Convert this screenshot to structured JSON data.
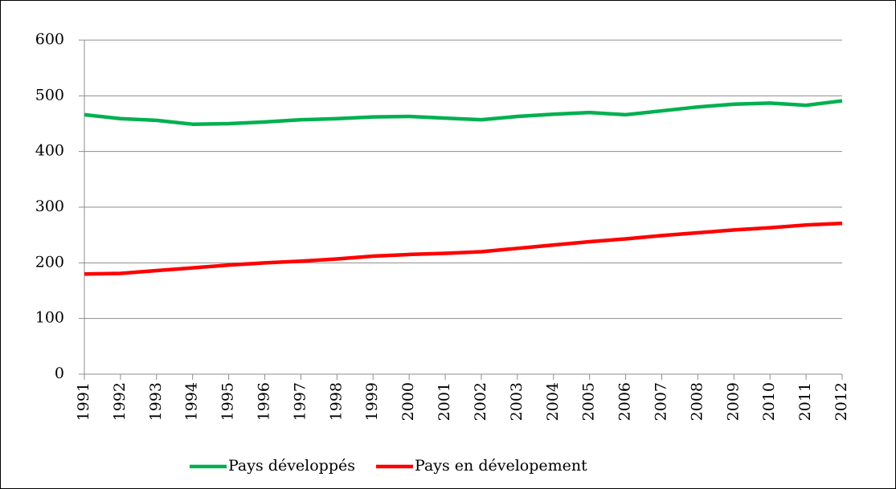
{
  "chart_data": {
    "type": "line",
    "categories": [
      "1991",
      "1992",
      "1993",
      "1994",
      "1995",
      "1996",
      "1997",
      "1998",
      "1999",
      "2000",
      "2001",
      "2002",
      "2003",
      "2004",
      "2005",
      "2006",
      "2007",
      "2008",
      "2009",
      "2010",
      "2011",
      "2012"
    ],
    "series": [
      {
        "name": "Pays développés",
        "color": "#00b050",
        "values": [
          466,
          459,
          456,
          449,
          450,
          453,
          457,
          459,
          462,
          463,
          460,
          457,
          463,
          467,
          470,
          466,
          473,
          480,
          485,
          487,
          483,
          491
        ]
      },
      {
        "name": "Pays en dévelopement",
        "color": "#ff0000",
        "values": [
          180,
          181,
          186,
          191,
          196,
          200,
          203,
          207,
          212,
          215,
          217,
          220,
          226,
          232,
          238,
          243,
          249,
          254,
          259,
          263,
          268,
          271
        ]
      }
    ],
    "ylim": [
      0,
      600
    ],
    "yticks": [
      0,
      100,
      200,
      300,
      400,
      500,
      600
    ],
    "grid": true,
    "legend": "bottom"
  }
}
